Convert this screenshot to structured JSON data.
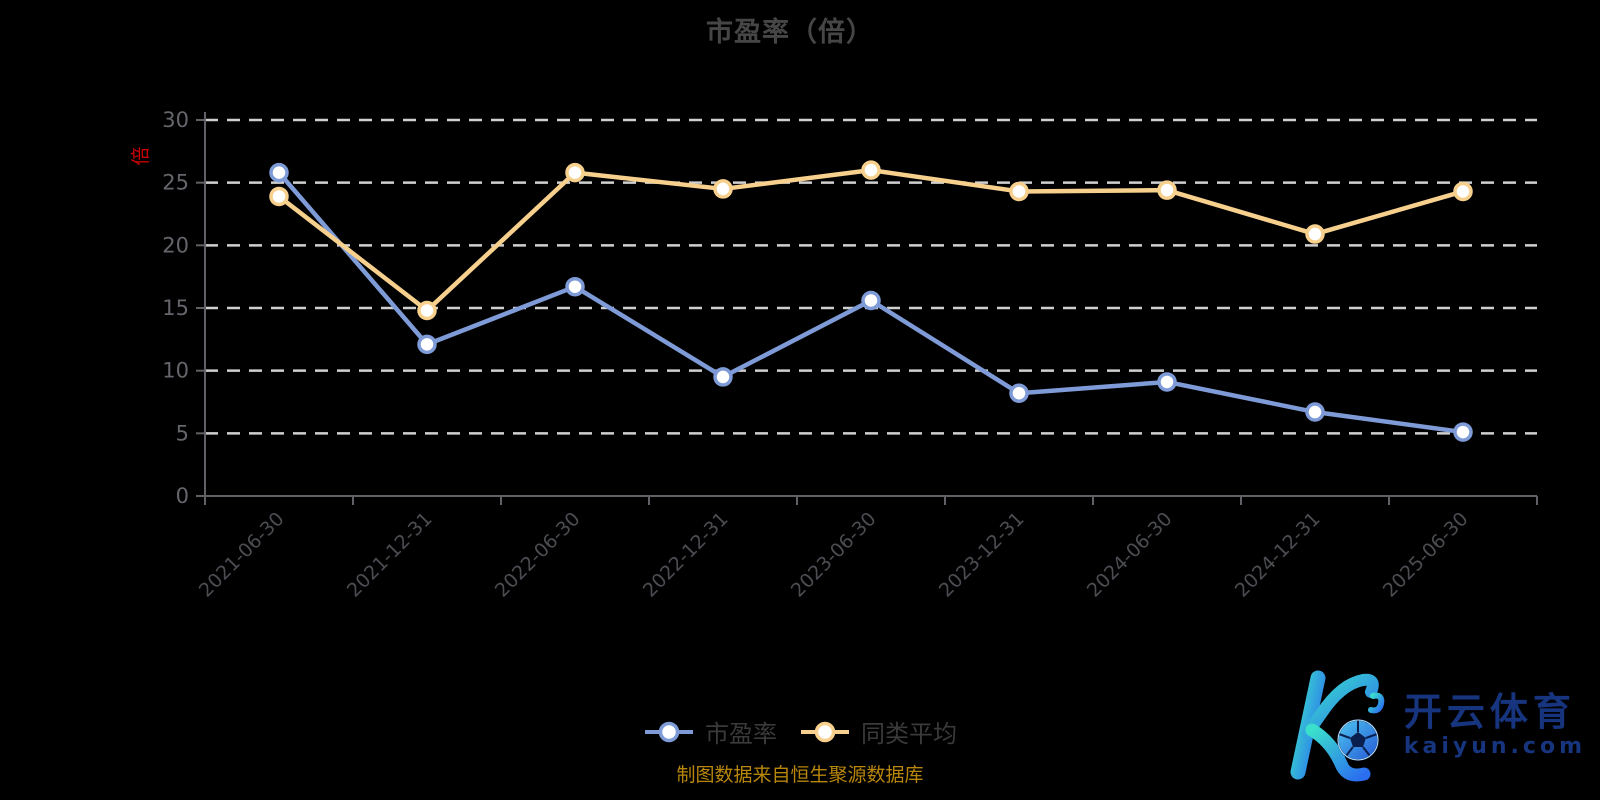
{
  "title": "市盈率（倍）",
  "y_axis_unit_label": "倍",
  "source_note": "制图数据来自恒生聚源数据库",
  "legend": [
    {
      "label": "市盈率",
      "color": "#7e9bd8"
    },
    {
      "label": "同类平均",
      "color": "#f7d08e"
    }
  ],
  "watermark": {
    "brand": "开云体育",
    "domain": "kaiyun.com",
    "logo_letter": "K"
  },
  "colors": {
    "background": "#000000",
    "title_text": "#464646",
    "y_axis_label": "#64666c",
    "x_axis_label": "#4b4d52",
    "axis_line": "#5f6166",
    "gridline": "#cfcfcf",
    "unit_label_red": "#cc0000",
    "source_text": "#b8860b",
    "legend_text": "#3a3a3a",
    "watermark_blue": "#17357f",
    "logo_gradient_start": "#3ae0cb",
    "logo_gradient_end": "#2b6ef0",
    "marker_fill": "#ffffff"
  },
  "chart_data": {
    "type": "line",
    "title": "市盈率（倍）",
    "categories": [
      "2021-06-30",
      "2021-12-31",
      "2022-06-30",
      "2022-12-31",
      "2023-06-30",
      "2023-12-31",
      "2024-06-30",
      "2024-12-31",
      "2025-06-30"
    ],
    "series": [
      {
        "name": "市盈率",
        "color": "#7e9bd8",
        "values": [
          25.8,
          12.1,
          16.7,
          9.5,
          15.6,
          8.2,
          9.1,
          6.7,
          5.1
        ]
      },
      {
        "name": "同类平均",
        "color": "#f7d08e",
        "values": [
          23.9,
          14.8,
          25.8,
          24.5,
          26.0,
          24.3,
          24.4,
          20.9,
          24.3
        ]
      }
    ],
    "ylabel": "倍",
    "xlabel": "",
    "ylim": [
      0,
      30
    ],
    "y_ticks": [
      0,
      5,
      10,
      15,
      20,
      25,
      30
    ],
    "x_label_rotation_deg": 45,
    "grid": "horizontal dashed",
    "legend_position": "bottom center"
  }
}
